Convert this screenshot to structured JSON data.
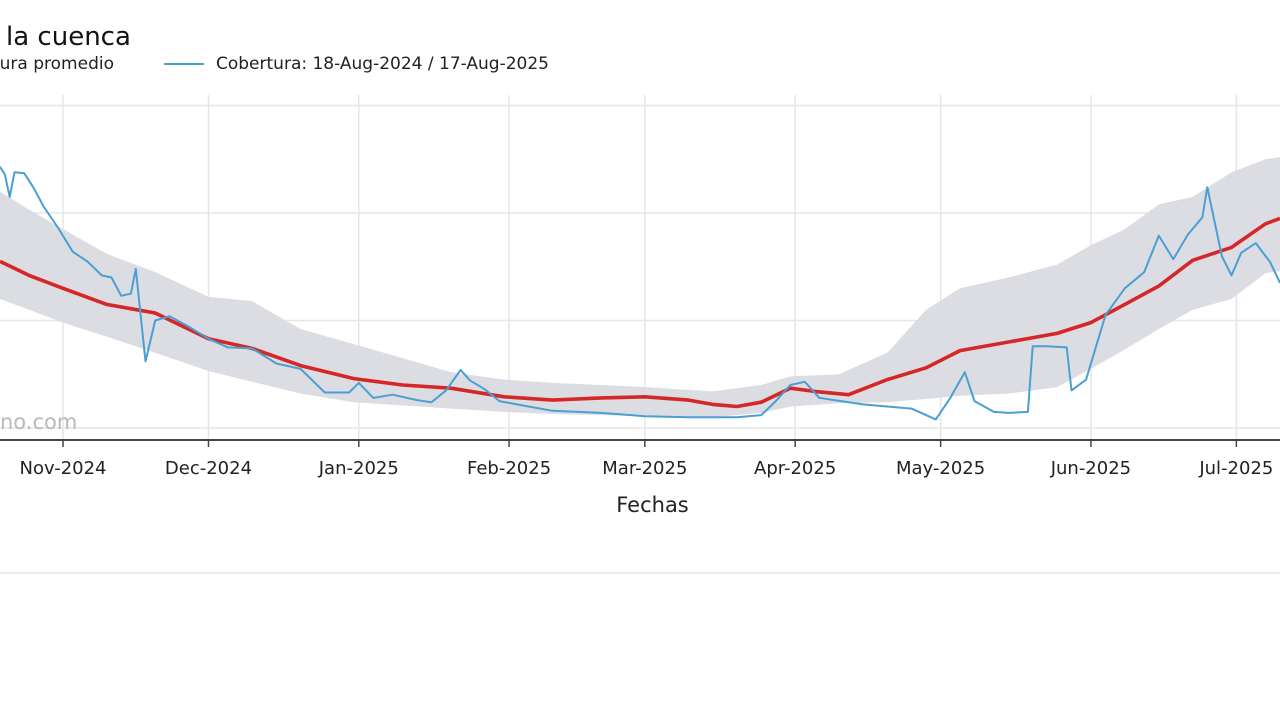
{
  "title": "la cuenca",
  "legend": {
    "mean_label": "rtura promedio",
    "coverage_label": "Cobertura: 18-Aug-2024 / 17-Aug-2025"
  },
  "watermark": "no.com",
  "colors": {
    "coverage": "#4a9fd4",
    "mean": "#d62728",
    "band": "#dcdde3",
    "grid": "#e6e6e6"
  },
  "chart_data": {
    "type": "line",
    "xlabel": "Fechas",
    "ylabel": "",
    "grid": true,
    "legend_position": "top-left",
    "x_ticks": [
      "Nov-2024",
      "Dec-2024",
      "Jan-2025",
      "Feb-2025",
      "Mar-2025",
      "Apr-2025",
      "May-2025",
      "Jun-2025",
      "Jul-2025"
    ],
    "x_tick_dates": [
      "2024-11-01",
      "2024-12-01",
      "2025-01-01",
      "2025-02-01",
      "2025-03-01",
      "2025-04-01",
      "2025-05-01",
      "2025-06-01",
      "2025-07-01"
    ],
    "xlim": [
      "2024-10-19",
      "2025-07-10"
    ],
    "ylim": [
      0,
      31
    ],
    "series": [
      {
        "name": "Cobertura: 18-Aug-2024 / 17-Aug-2025",
        "points": [
          [
            "2024-10-19",
            24.3
          ],
          [
            "2024-10-20",
            23.6
          ],
          [
            "2024-10-21",
            21.5
          ],
          [
            "2024-10-22",
            23.8
          ],
          [
            "2024-10-24",
            23.7
          ],
          [
            "2024-10-26",
            22.3
          ],
          [
            "2024-10-28",
            20.6
          ],
          [
            "2024-10-31",
            18.6
          ],
          [
            "2024-11-03",
            16.4
          ],
          [
            "2024-11-06",
            15.5
          ],
          [
            "2024-11-09",
            14.2
          ],
          [
            "2024-11-11",
            14.0
          ],
          [
            "2024-11-13",
            12.3
          ],
          [
            "2024-11-15",
            12.5
          ],
          [
            "2024-11-16",
            14.8
          ],
          [
            "2024-11-18",
            6.2
          ],
          [
            "2024-11-20",
            10.0
          ],
          [
            "2024-11-23",
            10.4
          ],
          [
            "2024-11-27",
            9.4
          ],
          [
            "2024-12-01",
            8.3
          ],
          [
            "2024-12-05",
            7.5
          ],
          [
            "2024-12-10",
            7.4
          ],
          [
            "2024-12-15",
            6.0
          ],
          [
            "2024-12-20",
            5.5
          ],
          [
            "2024-12-25",
            3.3
          ],
          [
            "2024-12-30",
            3.3
          ],
          [
            "2025-01-01",
            4.2
          ],
          [
            "2025-01-04",
            2.8
          ],
          [
            "2025-01-08",
            3.1
          ],
          [
            "2025-01-13",
            2.6
          ],
          [
            "2025-01-16",
            2.4
          ],
          [
            "2025-01-19",
            3.5
          ],
          [
            "2025-01-22",
            5.4
          ],
          [
            "2025-01-24",
            4.4
          ],
          [
            "2025-01-27",
            3.6
          ],
          [
            "2025-01-30",
            2.5
          ],
          [
            "2025-02-05",
            2.0
          ],
          [
            "2025-02-10",
            1.6
          ],
          [
            "2025-02-20",
            1.4
          ],
          [
            "2025-03-01",
            1.1
          ],
          [
            "2025-03-10",
            1.0
          ],
          [
            "2025-03-20",
            1.0
          ],
          [
            "2025-03-25",
            1.2
          ],
          [
            "2025-03-28",
            2.5
          ],
          [
            "2025-03-31",
            4.0
          ],
          [
            "2025-04-03",
            4.3
          ],
          [
            "2025-04-06",
            2.8
          ],
          [
            "2025-04-15",
            2.2
          ],
          [
            "2025-04-25",
            1.8
          ],
          [
            "2025-04-30",
            0.8
          ],
          [
            "2025-05-03",
            2.8
          ],
          [
            "2025-05-06",
            5.2
          ],
          [
            "2025-05-08",
            2.5
          ],
          [
            "2025-05-12",
            1.5
          ],
          [
            "2025-05-15",
            1.4
          ],
          [
            "2025-05-19",
            1.5
          ],
          [
            "2025-05-20",
            7.6
          ],
          [
            "2025-05-23",
            7.6
          ],
          [
            "2025-05-27",
            7.5
          ],
          [
            "2025-05-28",
            3.5
          ],
          [
            "2025-05-31",
            4.5
          ],
          [
            "2025-06-04",
            10.5
          ],
          [
            "2025-06-08",
            13.0
          ],
          [
            "2025-06-12",
            14.5
          ],
          [
            "2025-06-15",
            17.9
          ],
          [
            "2025-06-18",
            15.7
          ],
          [
            "2025-06-21",
            18.0
          ],
          [
            "2025-06-24",
            19.6
          ],
          [
            "2025-06-25",
            22.4
          ],
          [
            "2025-06-28",
            16.0
          ],
          [
            "2025-06-30",
            14.2
          ],
          [
            "2025-07-02",
            16.3
          ],
          [
            "2025-07-05",
            17.2
          ],
          [
            "2025-07-08",
            15.4
          ],
          [
            "2025-07-10",
            13.5
          ]
        ]
      },
      {
        "name": "rtura promedio",
        "points": [
          [
            "2024-10-19",
            15.5
          ],
          [
            "2024-10-25",
            14.2
          ],
          [
            "2024-11-01",
            13.0
          ],
          [
            "2024-11-10",
            11.5
          ],
          [
            "2024-11-20",
            10.7
          ],
          [
            "2024-12-01",
            8.3
          ],
          [
            "2024-12-10",
            7.4
          ],
          [
            "2024-12-20",
            5.8
          ],
          [
            "2024-12-31",
            4.6
          ],
          [
            "2025-01-10",
            4.0
          ],
          [
            "2025-01-20",
            3.7
          ],
          [
            "2025-01-31",
            2.9
          ],
          [
            "2025-02-10",
            2.6
          ],
          [
            "2025-02-20",
            2.8
          ],
          [
            "2025-03-01",
            2.9
          ],
          [
            "2025-03-10",
            2.6
          ],
          [
            "2025-03-15",
            2.2
          ],
          [
            "2025-03-20",
            2.0
          ],
          [
            "2025-03-25",
            2.4
          ],
          [
            "2025-03-31",
            3.7
          ],
          [
            "2025-04-05",
            3.4
          ],
          [
            "2025-04-12",
            3.1
          ],
          [
            "2025-04-20",
            4.5
          ],
          [
            "2025-04-28",
            5.6
          ],
          [
            "2025-05-05",
            7.2
          ],
          [
            "2025-05-15",
            8.0
          ],
          [
            "2025-05-25",
            8.8
          ],
          [
            "2025-06-01",
            9.8
          ],
          [
            "2025-06-08",
            11.5
          ],
          [
            "2025-06-15",
            13.2
          ],
          [
            "2025-06-22",
            15.6
          ],
          [
            "2025-06-30",
            16.8
          ],
          [
            "2025-07-07",
            19.0
          ],
          [
            "2025-07-10",
            19.5
          ]
        ]
      }
    ],
    "band": {
      "upper": [
        [
          "2024-10-19",
          22.0
        ],
        [
          "2024-10-25",
          20.3
        ],
        [
          "2024-11-01",
          18.5
        ],
        [
          "2024-11-10",
          16.2
        ],
        [
          "2024-11-20",
          14.5
        ],
        [
          "2024-12-01",
          12.2
        ],
        [
          "2024-12-10",
          11.8
        ],
        [
          "2024-12-20",
          9.2
        ],
        [
          "2024-12-31",
          7.8
        ],
        [
          "2025-01-10",
          6.5
        ],
        [
          "2025-01-20",
          5.2
        ],
        [
          "2025-01-31",
          4.5
        ],
        [
          "2025-02-10",
          4.2
        ],
        [
          "2025-02-20",
          4.0
        ],
        [
          "2025-03-01",
          3.8
        ],
        [
          "2025-03-15",
          3.4
        ],
        [
          "2025-03-25",
          4.0
        ],
        [
          "2025-03-31",
          4.8
        ],
        [
          "2025-04-10",
          5.0
        ],
        [
          "2025-04-20",
          7.0
        ],
        [
          "2025-04-28",
          11.0
        ],
        [
          "2025-05-05",
          13.0
        ],
        [
          "2025-05-15",
          14.0
        ],
        [
          "2025-05-25",
          15.2
        ],
        [
          "2025-06-01",
          17.0
        ],
        [
          "2025-06-08",
          18.5
        ],
        [
          "2025-06-15",
          20.8
        ],
        [
          "2025-06-22",
          21.5
        ],
        [
          "2025-06-30",
          23.8
        ],
        [
          "2025-07-07",
          25.0
        ],
        [
          "2025-07-10",
          25.2
        ]
      ],
      "lower": [
        [
          "2024-10-19",
          12.0
        ],
        [
          "2024-10-25",
          11.0
        ],
        [
          "2024-11-01",
          9.8
        ],
        [
          "2024-11-10",
          8.5
        ],
        [
          "2024-11-20",
          7.0
        ],
        [
          "2024-12-01",
          5.3
        ],
        [
          "2024-12-10",
          4.3
        ],
        [
          "2024-12-20",
          3.2
        ],
        [
          "2024-12-31",
          2.4
        ],
        [
          "2025-01-10",
          2.1
        ],
        [
          "2025-01-20",
          1.8
        ],
        [
          "2025-01-31",
          1.5
        ],
        [
          "2025-02-10",
          1.3
        ],
        [
          "2025-02-20",
          1.2
        ],
        [
          "2025-03-01",
          1.1
        ],
        [
          "2025-03-15",
          1.0
        ],
        [
          "2025-03-25",
          1.4
        ],
        [
          "2025-03-31",
          2.0
        ],
        [
          "2025-04-10",
          2.3
        ],
        [
          "2025-04-20",
          2.4
        ],
        [
          "2025-04-28",
          2.7
        ],
        [
          "2025-05-05",
          3.0
        ],
        [
          "2025-05-15",
          3.2
        ],
        [
          "2025-05-25",
          3.8
        ],
        [
          "2025-06-01",
          5.5
        ],
        [
          "2025-06-08",
          7.3
        ],
        [
          "2025-06-15",
          9.2
        ],
        [
          "2025-06-22",
          11.0
        ],
        [
          "2025-06-30",
          12.0
        ],
        [
          "2025-07-07",
          14.4
        ],
        [
          "2025-07-10",
          14.6
        ]
      ]
    }
  }
}
